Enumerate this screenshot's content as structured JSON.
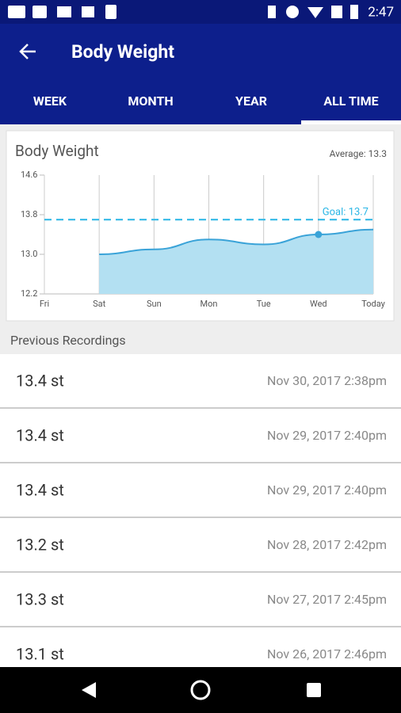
{
  "status_bar": {
    "time": "2:47"
  },
  "app_bar": {
    "title": "Body Weight"
  },
  "tabs": [
    "WEEK",
    "MONTH",
    "YEAR",
    "ALL TIME"
  ],
  "chart_data": {
    "type": "area",
    "title": "Body Weight",
    "average_label": "Average: 13.3",
    "categories": [
      "Fri",
      "Sat",
      "Sun",
      "Mon",
      "Tue",
      "Wed",
      "Today"
    ],
    "values": [
      null,
      13.0,
      13.1,
      13.3,
      13.2,
      13.4,
      13.5
    ],
    "color": "#3aa3d8",
    "fill": "#b3e0f2",
    "ylim": [
      12.2,
      14.6
    ],
    "yticks": [
      12.2,
      {
        "value": 13,
        "label": "13.0"
      },
      13.8,
      14.6
    ],
    "goal": {
      "value": 13.7,
      "label": "Goal: 13.7",
      "color": "#29b6e6"
    },
    "highlight_category": "Wed",
    "grid": true
  },
  "section_title": "Previous Recordings",
  "recordings": [
    {
      "weight": "13.4 st",
      "date": "Nov 30, 2017 2:38pm"
    },
    {
      "weight": "13.4 st",
      "date": "Nov 29, 2017 2:40pm"
    },
    {
      "weight": "13.4 st",
      "date": "Nov 29, 2017 2:40pm"
    },
    {
      "weight": "13.2 st",
      "date": "Nov 28, 2017 2:42pm"
    },
    {
      "weight": "13.3 st",
      "date": "Nov 27, 2017 2:45pm"
    },
    {
      "weight": "13.1 st",
      "date": "Nov 26, 2017 2:46pm"
    }
  ]
}
